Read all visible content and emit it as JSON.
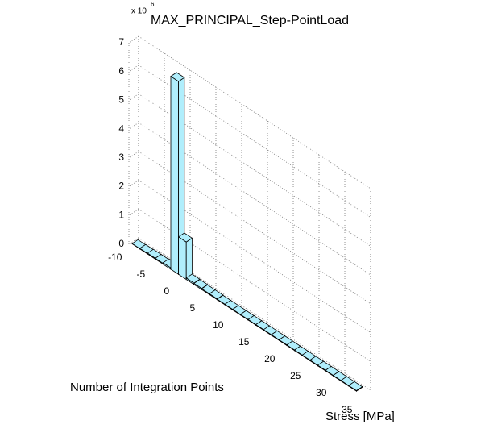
{
  "chart_data": {
    "type": "bar3",
    "title": "MAX_PRINCIPAL_Step-PointLoad",
    "y_multiplier": "x 10",
    "y_multiplier_exponent": "6",
    "ylabel": "Number of Integration Points",
    "xlabel": "Stress [MPa]",
    "bin_width": 1.5,
    "x": [
      -9,
      -7.5,
      -6,
      -4.5,
      -3,
      -1.5,
      0,
      1.5,
      3,
      4.5,
      6,
      7.5,
      9,
      10.5,
      12,
      13.5,
      15,
      16.5,
      18,
      19.5,
      21,
      22.5,
      24,
      25.5,
      27,
      28.5,
      30,
      31.5,
      33
    ],
    "values": [
      0.01,
      0.02,
      0.03,
      0.03,
      0.05,
      6.7,
      1.3,
      0.05,
      0.04,
      0.03,
      0.03,
      0.02,
      0.02,
      0.02,
      0.02,
      0.02,
      0.02,
      0.02,
      0.02,
      0.02,
      0.02,
      0.02,
      0.02,
      0.02,
      0.02,
      0.02,
      0.02,
      0.02,
      0.02
    ],
    "color": "#b0eefc",
    "xlim": [
      -10,
      35
    ],
    "xticks": [
      -10,
      -5,
      0,
      5,
      10,
      15,
      20,
      25,
      30,
      35
    ],
    "ylim": [
      0,
      7
    ],
    "yticks": [
      0,
      1,
      2,
      3,
      4,
      5,
      6,
      7
    ],
    "grid": true
  }
}
